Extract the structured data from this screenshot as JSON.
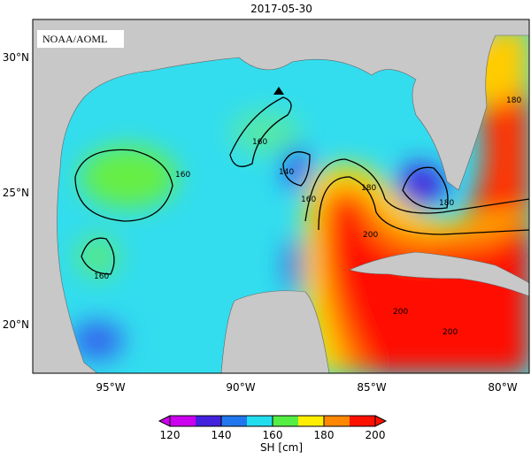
{
  "title": "2017-05-30",
  "credit": "NOAA/AOML",
  "map": {
    "lon_labels": [
      "95°W",
      "90°W",
      "85°W",
      "80°W"
    ],
    "lat_labels": [
      "30°N",
      "25°N",
      "20°N"
    ],
    "contour_labels": [
      "160",
      "160",
      "160",
      "140",
      "160",
      "180",
      "180",
      "200",
      "200",
      "200",
      "180"
    ]
  },
  "colorbar": {
    "range": [
      120,
      200
    ],
    "ticks": [
      120,
      140,
      160,
      180,
      200
    ],
    "label": "SH [cm]",
    "colors": [
      "#cc00ee",
      "#4422dd",
      "#2277ee",
      "#22ddee",
      "#55ee44",
      "#ffee00",
      "#ff8800",
      "#ff1100"
    ]
  }
}
